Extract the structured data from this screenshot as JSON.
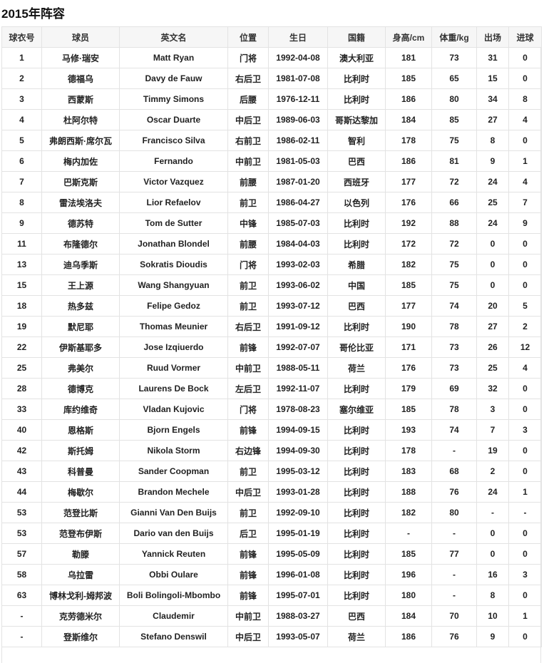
{
  "title": "2015年阵容",
  "columns": [
    "球衣号",
    "球员",
    "英文名",
    "位置",
    "生日",
    "国籍",
    "身高/cm",
    "体重/kg",
    "出场",
    "进球"
  ],
  "rows": [
    [
      "1",
      "马修·瑞安",
      "Matt Ryan",
      "门将",
      "1992-04-08",
      "澳大利亚",
      "181",
      "73",
      "31",
      "0"
    ],
    [
      "2",
      "德福乌",
      "Davy de Fauw",
      "右后卫",
      "1981-07-08",
      "比利时",
      "185",
      "65",
      "15",
      "0"
    ],
    [
      "3",
      "西蒙斯",
      "Timmy Simons",
      "后腰",
      "1976-12-11",
      "比利时",
      "186",
      "80",
      "34",
      "8"
    ],
    [
      "4",
      "杜阿尔特",
      "Oscar Duarte",
      "中后卫",
      "1989-06-03",
      "哥斯达黎加",
      "184",
      "85",
      "27",
      "4"
    ],
    [
      "5",
      "弗朗西斯·席尔瓦",
      "Francisco Silva",
      "右前卫",
      "1986-02-11",
      "智利",
      "178",
      "75",
      "8",
      "0"
    ],
    [
      "6",
      "梅内加佐",
      "Fernando",
      "中前卫",
      "1981-05-03",
      "巴西",
      "186",
      "81",
      "9",
      "1"
    ],
    [
      "7",
      "巴斯克斯",
      "Victor Vazquez",
      "前腰",
      "1987-01-20",
      "西班牙",
      "177",
      "72",
      "24",
      "4"
    ],
    [
      "8",
      "雷法埃洛夫",
      "Lior Refaelov",
      "前卫",
      "1986-04-27",
      "以色列",
      "176",
      "66",
      "25",
      "7"
    ],
    [
      "9",
      "德苏特",
      "Tom de Sutter",
      "中锋",
      "1985-07-03",
      "比利时",
      "192",
      "88",
      "24",
      "9"
    ],
    [
      "11",
      "布隆德尔",
      "Jonathan Blondel",
      "前腰",
      "1984-04-03",
      "比利时",
      "172",
      "72",
      "0",
      "0"
    ],
    [
      "13",
      "迪乌季斯",
      "Sokratis Dioudis",
      "门将",
      "1993-02-03",
      "希腊",
      "182",
      "75",
      "0",
      "0"
    ],
    [
      "15",
      "王上源",
      "Wang Shangyuan",
      "前卫",
      "1993-06-02",
      "中国",
      "185",
      "75",
      "0",
      "0"
    ],
    [
      "18",
      "热多兹",
      "Felipe Gedoz",
      "前卫",
      "1993-07-12",
      "巴西",
      "177",
      "74",
      "20",
      "5"
    ],
    [
      "19",
      "默尼耶",
      "Thomas Meunier",
      "右后卫",
      "1991-09-12",
      "比利时",
      "190",
      "78",
      "27",
      "2"
    ],
    [
      "22",
      "伊斯基耶多",
      "Jose Izqiuerdo",
      "前锋",
      "1992-07-07",
      "哥伦比亚",
      "171",
      "73",
      "26",
      "12"
    ],
    [
      "25",
      "弗美尔",
      "Ruud Vormer",
      "中前卫",
      "1988-05-11",
      "荷兰",
      "176",
      "73",
      "25",
      "4"
    ],
    [
      "28",
      "德博克",
      "Laurens De Bock",
      "左后卫",
      "1992-11-07",
      "比利时",
      "179",
      "69",
      "32",
      "0"
    ],
    [
      "33",
      "库约维奇",
      "Vladan Kujovic",
      "门将",
      "1978-08-23",
      "塞尔维亚",
      "185",
      "78",
      "3",
      "0"
    ],
    [
      "40",
      "恩格斯",
      "Bjorn Engels",
      "前锋",
      "1994-09-15",
      "比利时",
      "193",
      "74",
      "7",
      "3"
    ],
    [
      "42",
      "斯托姆",
      "Nikola Storm",
      "右边锋",
      "1994-09-30",
      "比利时",
      "178",
      "-",
      "19",
      "0"
    ],
    [
      "43",
      "科普曼",
      "Sander Coopman",
      "前卫",
      "1995-03-12",
      "比利时",
      "183",
      "68",
      "2",
      "0"
    ],
    [
      "44",
      "梅歇尔",
      "Brandon Mechele",
      "中后卫",
      "1993-01-28",
      "比利时",
      "188",
      "76",
      "24",
      "1"
    ],
    [
      "53",
      "范登比斯",
      "Gianni Van Den Buijs",
      "前卫",
      "1992-09-10",
      "比利时",
      "182",
      "80",
      "-",
      "-"
    ],
    [
      "53",
      "范登布伊斯",
      "Dario van den Buijs",
      "后卫",
      "1995-01-19",
      "比利时",
      "-",
      "-",
      "0",
      "0"
    ],
    [
      "57",
      "勒滕",
      "Yannick Reuten",
      "前锋",
      "1995-05-09",
      "比利时",
      "185",
      "77",
      "0",
      "0"
    ],
    [
      "58",
      "乌拉雷",
      "Obbi Oulare",
      "前锋",
      "1996-01-08",
      "比利时",
      "196",
      "-",
      "16",
      "3"
    ],
    [
      "63",
      "博林戈利-姆邦波",
      "Boli Bolingoli-Mbombo",
      "前锋",
      "1995-07-01",
      "比利时",
      "180",
      "-",
      "8",
      "0"
    ],
    [
      "-",
      "克劳德米尔",
      "Claudemir",
      "中前卫",
      "1988-03-27",
      "巴西",
      "184",
      "70",
      "10",
      "1"
    ],
    [
      "-",
      "登斯维尔",
      "Stefano Denswil",
      "中后卫",
      "1993-05-07",
      "荷兰",
      "186",
      "76",
      "9",
      "0"
    ]
  ]
}
